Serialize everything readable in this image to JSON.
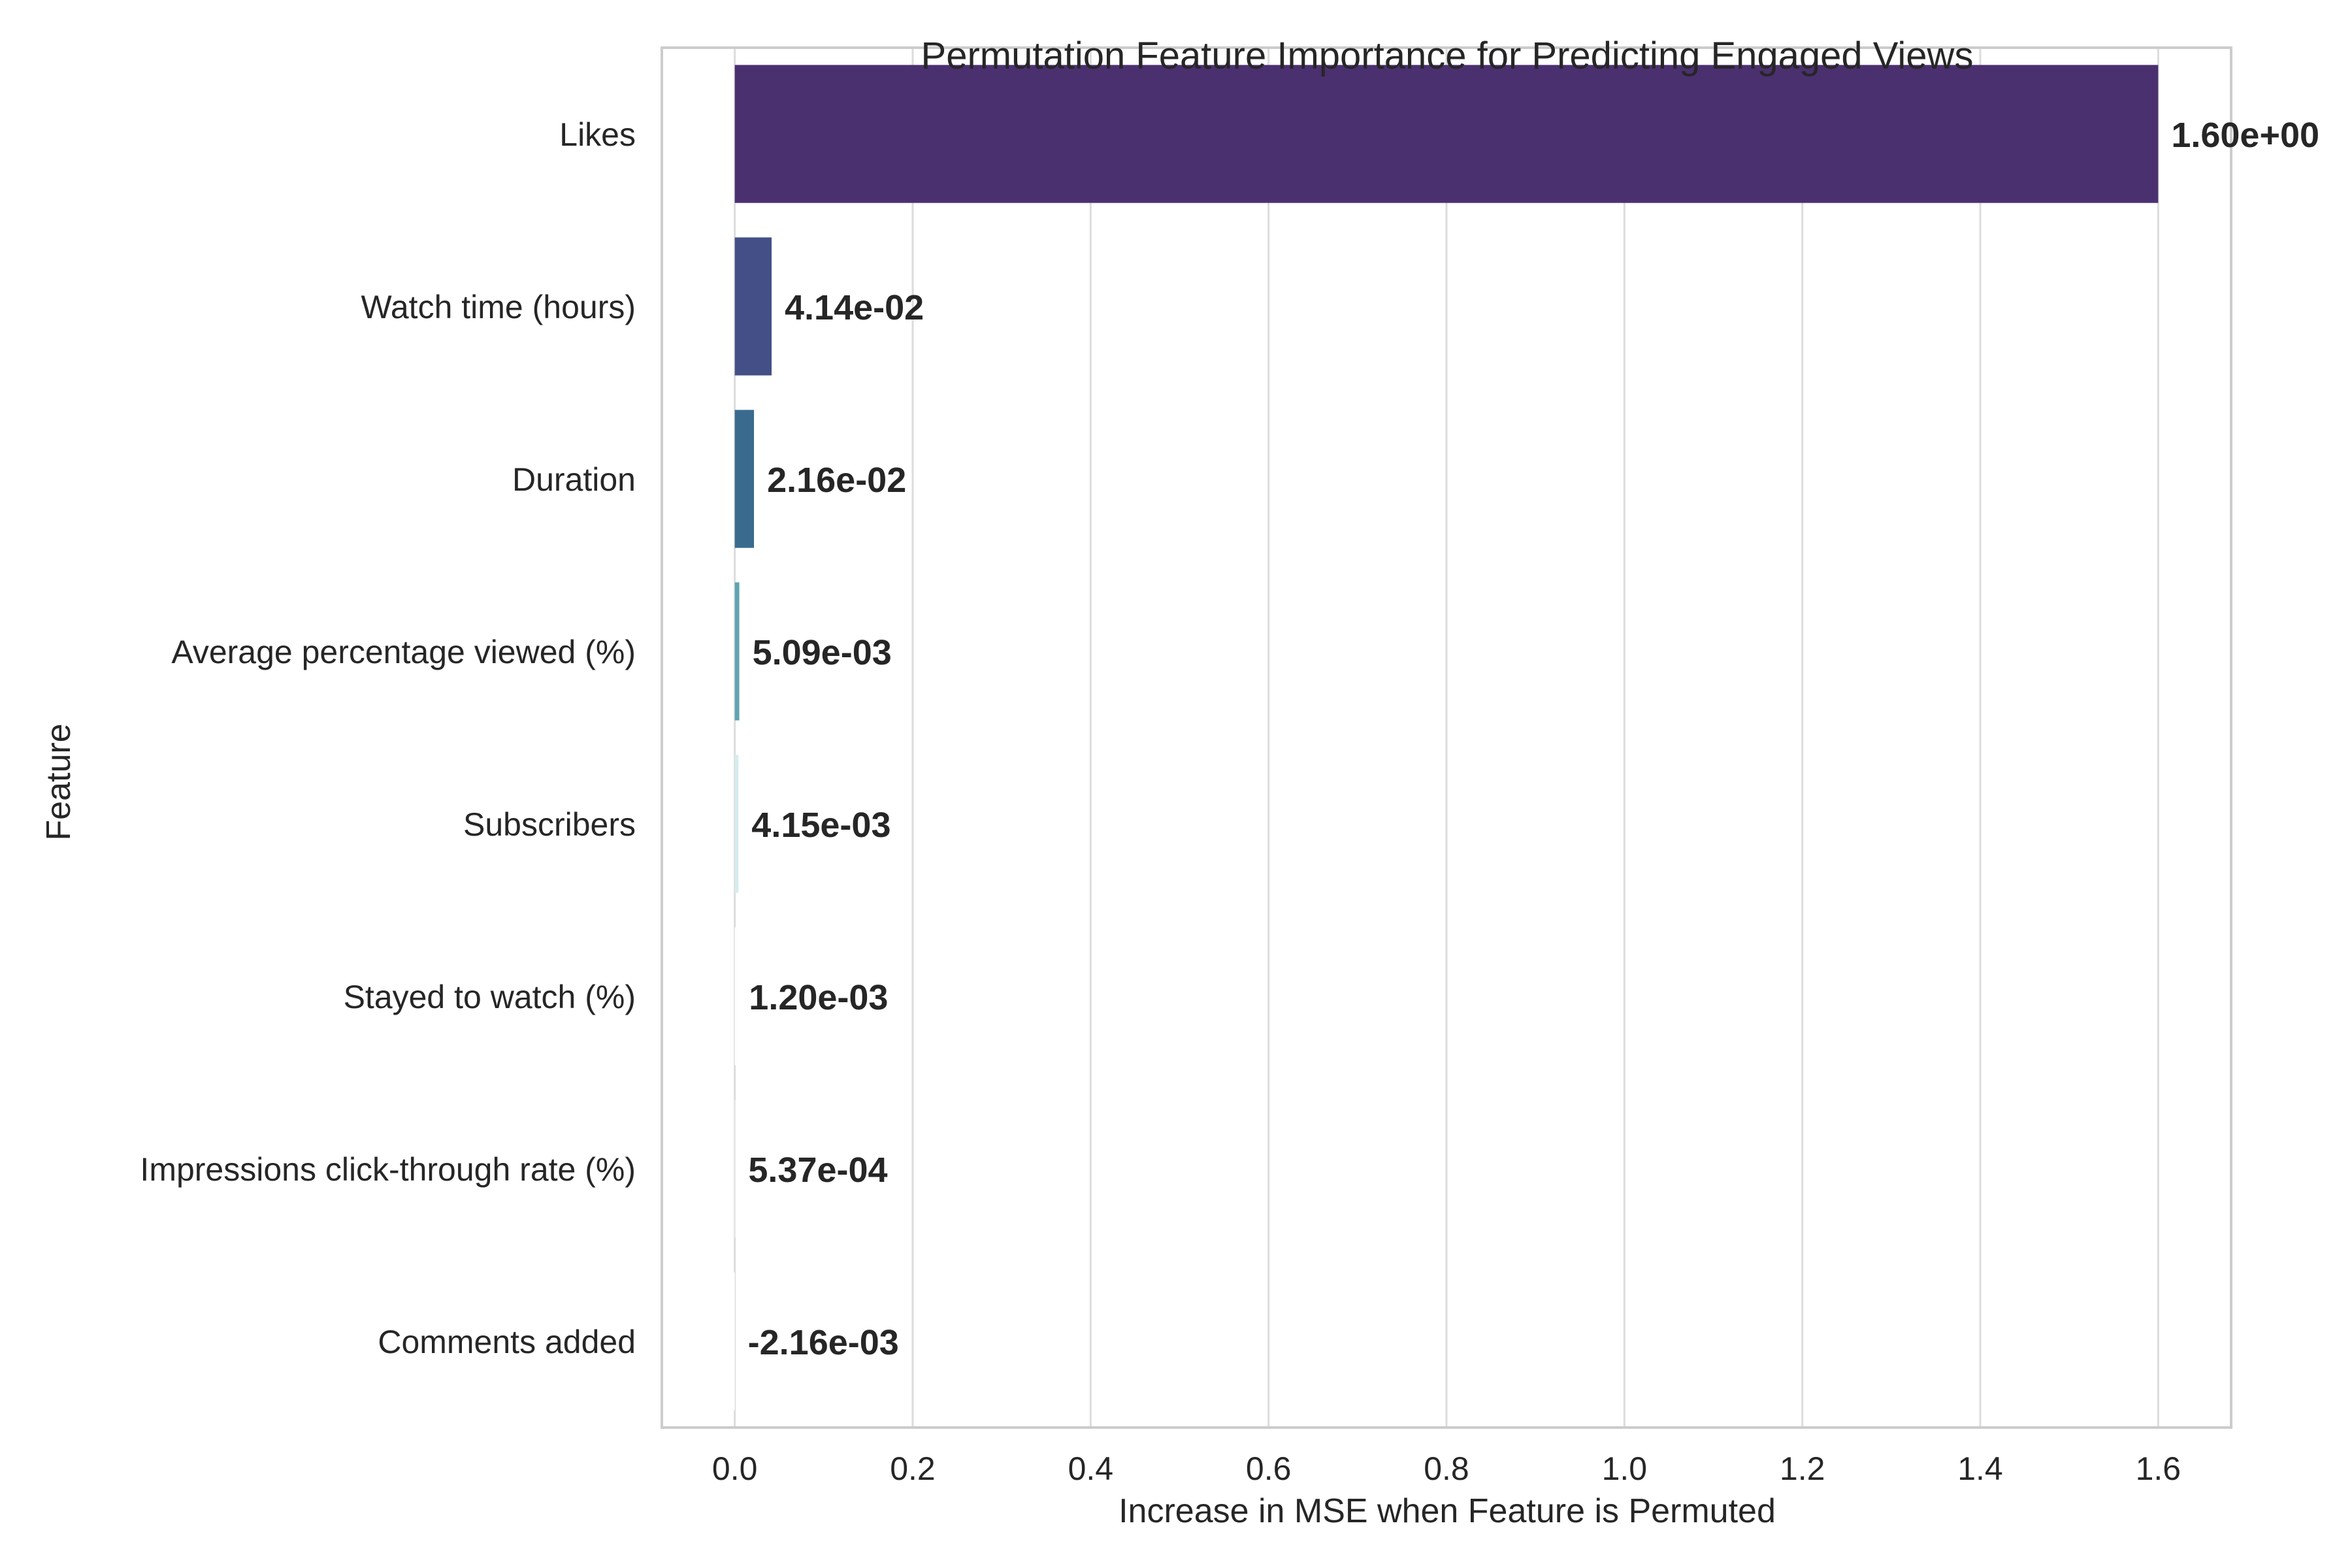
{
  "chart_data": {
    "type": "bar",
    "orientation": "horizontal",
    "title": "Permutation Feature Importance for Predicting Engaged Views",
    "xlabel": "Increase in MSE when Feature is Permuted",
    "ylabel": "Feature",
    "categories": [
      "Likes",
      "Watch time (hours)",
      "Duration",
      "Average percentage viewed (%)",
      "Subscribers",
      "Stayed to watch (%)",
      "Impressions click-through rate (%)",
      "Comments added"
    ],
    "values": [
      1.6,
      0.0414,
      0.0216,
      0.00509,
      0.00415,
      0.0012,
      0.000537,
      -0.00216
    ],
    "value_labels": [
      "1.60e+00",
      "4.14e-02",
      "2.16e-02",
      "5.09e-03",
      "4.15e-03",
      "1.20e-03",
      "5.37e-04",
      "-2.16e-03"
    ],
    "bar_colors": [
      "#4b306f",
      "#434f86",
      "#3a6b8e",
      "#60a3b3",
      "#d6ecef",
      "#ffffff",
      "#ffffff",
      "#ffffff"
    ],
    "xlim": [
      -0.082,
      1.682
    ],
    "xticks": [
      0.0,
      0.2,
      0.4,
      0.6,
      0.8,
      1.0,
      1.2,
      1.4,
      1.6
    ],
    "xtick_labels": [
      "0.0",
      "0.2",
      "0.4",
      "0.6",
      "0.8",
      "1.0",
      "1.2",
      "1.4",
      "1.6"
    ],
    "grid": "vertical",
    "legend": "none",
    "colors": {
      "grid": "#dcdcdc",
      "spine": "#cccccc",
      "text": "#262626",
      "background": "#ffffff"
    }
  }
}
